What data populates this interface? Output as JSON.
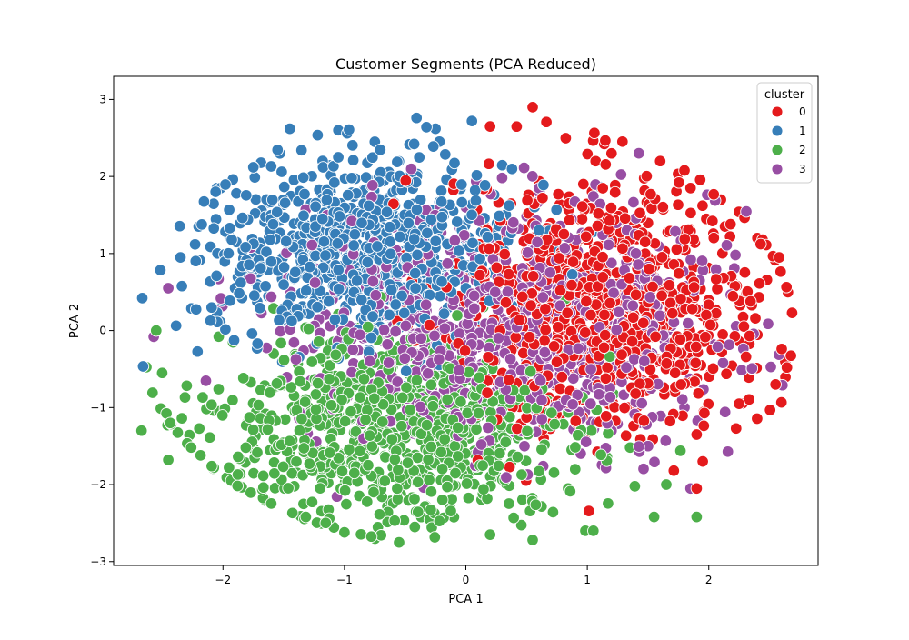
{
  "chart_data": {
    "type": "scatter",
    "title": "Customer Segments (PCA Reduced)",
    "xlabel": "PCA 1",
    "ylabel": "PCA 2",
    "xlim": [
      -2.9,
      2.9
    ],
    "ylim": [
      -3.05,
      3.3
    ],
    "xticks": [
      -2,
      -1,
      0,
      1,
      2
    ],
    "yticks": [
      -3,
      -2,
      -1,
      0,
      1,
      2,
      3
    ],
    "xtick_labels": [
      "−2",
      "−1",
      "0",
      "1",
      "2"
    ],
    "ytick_labels": [
      "−3",
      "−2",
      "−1",
      "0",
      "1",
      "2",
      "3"
    ],
    "grid": false,
    "legend": {
      "title": "cluster",
      "placement": "top-right",
      "entries": [
        "0",
        "1",
        "2",
        "3"
      ]
    },
    "series": [
      {
        "name": "0",
        "color": "#e41a1c",
        "center": [
          1.15,
          0.35
        ],
        "spread": [
          0.68,
          0.82
        ],
        "count": 900,
        "marked_points": [
          [
            0.55,
            2.9
          ],
          [
            0.2,
            2.65
          ],
          [
            1.2,
            2.3
          ],
          [
            1.6,
            2.2
          ],
          [
            1.85,
            1.85
          ],
          [
            2.1,
            1.7
          ],
          [
            2.4,
            1.2
          ],
          [
            2.58,
            0.95
          ],
          [
            2.63,
            -0.4
          ],
          [
            2.55,
            -0.7
          ],
          [
            2.25,
            -0.95
          ],
          [
            1.9,
            -1.35
          ],
          [
            1.95,
            -1.7
          ],
          [
            1.9,
            -2.05
          ],
          [
            0.15,
            0.75
          ]
        ]
      },
      {
        "name": "1",
        "color": "#377eb8",
        "center": [
          -0.85,
          1.05
        ],
        "spread": [
          0.62,
          0.58
        ],
        "count": 850,
        "marked_points": [
          [
            -1.45,
            2.62
          ],
          [
            -1.05,
            2.6
          ],
          [
            -0.25,
            2.62
          ],
          [
            0.05,
            2.72
          ],
          [
            -1.75,
            2.12
          ],
          [
            -2.05,
            1.85
          ],
          [
            -2.2,
            1.35
          ],
          [
            -2.35,
            0.95
          ],
          [
            -1.9,
            0.55
          ],
          [
            -0.75,
            2.45
          ],
          [
            0.0,
            0.55
          ],
          [
            0.35,
            -0.1
          ]
        ]
      },
      {
        "name": "2",
        "color": "#4daf4a",
        "center": [
          -0.6,
          -1.3
        ],
        "spread": [
          0.75,
          0.62
        ],
        "count": 900,
        "marked_points": [
          [
            -2.67,
            -1.3
          ],
          [
            -2.5,
            -0.55
          ],
          [
            -2.45,
            -1.68
          ],
          [
            -2.55,
            0.0
          ],
          [
            -1.95,
            -1.78
          ],
          [
            -1.0,
            -2.62
          ],
          [
            -0.55,
            -2.75
          ],
          [
            0.2,
            -2.65
          ],
          [
            0.55,
            -2.72
          ],
          [
            1.05,
            -2.6
          ],
          [
            1.55,
            -2.42
          ],
          [
            1.9,
            -2.42
          ],
          [
            1.65,
            -2.0
          ],
          [
            0.9,
            -1.8
          ]
        ]
      },
      {
        "name": "3",
        "color": "#984ea3",
        "center": [
          0.35,
          0.05
        ],
        "spread": [
          0.85,
          0.75
        ],
        "count": 900,
        "marked_points": [
          [
            -2.45,
            0.55
          ],
          [
            -2.57,
            -0.08
          ],
          [
            -0.45,
            2.1
          ],
          [
            0.0,
            1.6
          ],
          [
            0.45,
            0.0
          ],
          [
            1.0,
            -0.7
          ],
          [
            1.8,
            -1.0
          ],
          [
            1.85,
            -2.05
          ],
          [
            1.5,
            -1.5
          ],
          [
            1.2,
            -1.3
          ],
          [
            0.5,
            -0.5
          ]
        ]
      }
    ]
  }
}
